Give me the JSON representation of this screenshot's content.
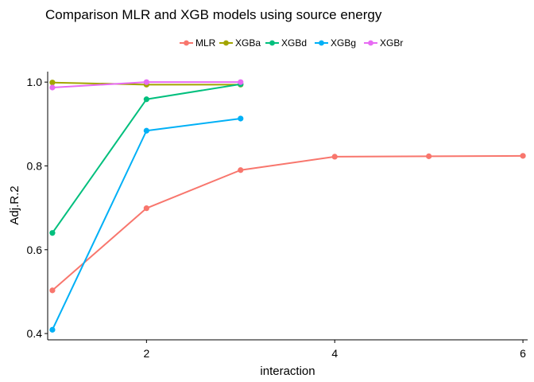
{
  "chart_data": {
    "type": "line",
    "title": "Comparison MLR and XGB models using source energy",
    "xlabel": "interaction",
    "ylabel": "Adj.R.2",
    "xlim": [
      0.95,
      6.05
    ],
    "ylim": [
      0.385,
      1.025
    ],
    "xticks": [
      2,
      4,
      6
    ],
    "yticks": [
      0.4,
      0.6,
      0.8,
      1.0
    ],
    "xtick_labels": [
      "2",
      "4",
      "6"
    ],
    "ytick_labels": [
      "0.4",
      "0.6",
      "0.8",
      "1.0"
    ],
    "grid": false,
    "legend_position": "top",
    "series": [
      {
        "name": "MLR",
        "color": "#F8766D",
        "x": [
          1,
          2,
          3,
          4,
          5,
          6
        ],
        "y": [
          0.503,
          0.699,
          0.79,
          0.822,
          0.823,
          0.824
        ]
      },
      {
        "name": "XGBa",
        "color": "#A3A500",
        "x": [
          1,
          2,
          3
        ],
        "y": [
          0.999,
          0.994,
          0.994
        ]
      },
      {
        "name": "XGBd",
        "color": "#00BF7D",
        "x": [
          1,
          2,
          3
        ],
        "y": [
          0.64,
          0.959,
          0.995
        ]
      },
      {
        "name": "XGBg",
        "color": "#00B0F6",
        "x": [
          1,
          2,
          3
        ],
        "y": [
          0.409,
          0.884,
          0.913
        ]
      },
      {
        "name": "XGBr",
        "color": "#E76BF3",
        "x": [
          1,
          2,
          3
        ],
        "y": [
          0.987,
          1.0,
          1.0
        ]
      }
    ]
  }
}
